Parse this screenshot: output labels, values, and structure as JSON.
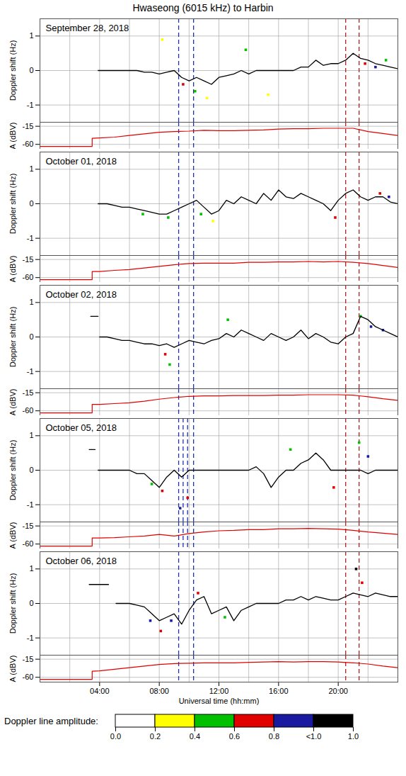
{
  "chart_data": {
    "type": "multi-panel line",
    "title": "Hwaseong (6015 kHz) to Harbin",
    "x_label": "Universal time (hh:mm)",
    "xlim": [
      0,
      24
    ],
    "xticks": [
      {
        "value": 4,
        "label": "04:00"
      },
      {
        "value": 8,
        "label": "08:00"
      },
      {
        "value": 12,
        "label": "12:00"
      },
      {
        "value": 16,
        "label": "16:00"
      },
      {
        "value": 20,
        "label": "20:00"
      }
    ],
    "grid": true,
    "doppler_label": "Doppler shift (Hz)",
    "doppler_ylim": [
      -1.5,
      1.5
    ],
    "doppler_yticks": [
      -1,
      0,
      1
    ],
    "doppler_color": "#000000",
    "amplitude_label": "A (dBV)",
    "amplitude_ylim": [
      -72,
      -5
    ],
    "amplitude_yticks": [
      -15,
      -60
    ],
    "amplitude_color": "#e00000",
    "line_style": "dashed",
    "panels": [
      {
        "date": "September 28, 2018",
        "vlines": [
          {
            "value": 9.3,
            "color": "#2233aa"
          },
          {
            "value": 10.3,
            "color": "#2233aa"
          },
          {
            "value": 20.5,
            "color": "#b22222"
          },
          {
            "value": 21.4,
            "color": "#b22222"
          }
        ],
        "doppler": {
          "x": [
            3.9,
            4.5,
            5,
            5.5,
            6,
            6.5,
            7,
            7.5,
            8,
            8.5,
            9,
            9.5,
            10,
            10.5,
            11,
            11.5,
            12,
            12.5,
            13,
            13.5,
            14,
            14.5,
            15,
            15.5,
            16,
            16.5,
            17,
            17.5,
            18,
            18.5,
            19,
            19.5,
            20,
            20.5,
            21,
            21.5,
            22,
            22.5,
            23,
            23.5,
            24
          ],
          "values": [
            0,
            0,
            0,
            0,
            0,
            0,
            -0.05,
            -0.05,
            -0.1,
            -0.05,
            0,
            -0.2,
            -0.3,
            -0.2,
            -0.3,
            -0.4,
            -0.2,
            -0.15,
            -0.1,
            0,
            -0.1,
            0,
            0,
            0,
            0,
            0,
            0,
            0.1,
            0.1,
            0.3,
            0.15,
            0.2,
            0.2,
            0.3,
            0.5,
            0.35,
            0.3,
            0.2,
            0.15,
            0.1,
            0.05
          ]
        },
        "amplitude": {
          "x": [
            0,
            1,
            2,
            3,
            3.5,
            3.5,
            4,
            5,
            6,
            7,
            8,
            9,
            10,
            11,
            12,
            13,
            14,
            15,
            16,
            17,
            18,
            19,
            20,
            21,
            22,
            23,
            24
          ],
          "values": [
            -65,
            -65,
            -65,
            -65,
            -65,
            -45,
            -44,
            -42,
            -38,
            -34,
            -30,
            -28,
            -27,
            -25,
            -26,
            -26,
            -25,
            -24,
            -22,
            -21,
            -21,
            -20,
            -20,
            -20,
            -28,
            -33,
            -38
          ]
        },
        "dots": {
          "x": [
            8.2,
            9.6,
            10.4,
            11.2,
            13.8,
            15.3,
            21.8,
            22.5,
            23.2
          ],
          "y": [
            0.9,
            -0.4,
            -0.6,
            -0.8,
            0.6,
            -0.7,
            0.2,
            0.1,
            0.3
          ],
          "values": [
            0.3,
            0.7,
            0.5,
            0.3,
            0.5,
            0.3,
            0.7,
            0.9,
            0.5
          ]
        }
      },
      {
        "date": "October 01, 2018",
        "vlines": [
          {
            "value": 9.3,
            "color": "#2233aa"
          },
          {
            "value": 10.3,
            "color": "#2233aa"
          },
          {
            "value": 20.5,
            "color": "#b22222"
          },
          {
            "value": 21.4,
            "color": "#b22222"
          }
        ],
        "doppler": {
          "x": [
            3.9,
            4.5,
            5,
            5.5,
            6,
            6.5,
            7,
            7.5,
            8,
            8.5,
            9,
            9.5,
            10,
            10.5,
            11,
            11.5,
            12,
            12.5,
            13,
            13.5,
            14,
            14.5,
            15,
            15.5,
            16,
            16.5,
            17,
            17.5,
            18,
            18.5,
            19,
            19.5,
            20,
            20.5,
            21,
            21.5,
            22,
            22.5,
            23,
            23.5,
            24
          ],
          "values": [
            0,
            0,
            -0.05,
            -0.1,
            -0.1,
            -0.15,
            -0.2,
            -0.25,
            -0.3,
            -0.3,
            -0.2,
            -0.1,
            0,
            0.1,
            -0.1,
            -0.3,
            -0.2,
            0.1,
            0,
            0.2,
            0.1,
            0,
            0.3,
            0.1,
            0.4,
            0.2,
            0.15,
            0.3,
            0.2,
            0.1,
            0,
            -0.2,
            0.1,
            0.3,
            0.4,
            0.2,
            0.1,
            0.2,
            0.2,
            0.05,
            0
          ]
        },
        "amplitude": {
          "x": [
            0,
            1,
            2,
            3,
            3.5,
            3.5,
            4,
            5,
            6,
            7,
            8,
            9,
            10,
            11,
            12,
            13,
            14,
            15,
            16,
            17,
            18,
            19,
            20,
            21,
            22,
            23,
            24
          ],
          "values": [
            -65,
            -65,
            -65,
            -65,
            -65,
            -45,
            -45,
            -42,
            -40,
            -36,
            -32,
            -28,
            -25,
            -24,
            -24,
            -24,
            -22,
            -22,
            -21,
            -21,
            -20,
            -21,
            -20,
            -22,
            -25,
            -30,
            -35
          ]
        },
        "dots": {
          "x": [
            6.9,
            8.6,
            10.8,
            11.6,
            19.8,
            22.8,
            23.4
          ],
          "y": [
            -0.3,
            -0.4,
            -0.3,
            -0.5,
            -0.4,
            0.3,
            0.2
          ],
          "values": [
            0.5,
            0.5,
            0.5,
            0.3,
            0.7,
            0.7,
            0.9
          ]
        }
      },
      {
        "date": "October 02, 2018",
        "vlines": [
          {
            "value": 9.3,
            "color": "#2233aa"
          },
          {
            "value": 10.3,
            "color": "#2233aa"
          },
          {
            "value": 20.5,
            "color": "#b22222"
          },
          {
            "value": 21.4,
            "color": "#b22222"
          }
        ],
        "doppler": {
          "x": [
            3.4,
            3.9,
            3.95,
            4.0,
            4.5,
            5,
            5.5,
            6,
            6.5,
            7,
            7.5,
            8,
            8.5,
            9,
            9.5,
            10,
            10.5,
            11,
            11.5,
            12,
            12.5,
            13,
            13.5,
            14,
            14.5,
            15,
            15.5,
            16,
            16.5,
            17,
            17.5,
            18,
            18.5,
            19,
            19.5,
            20,
            20.5,
            21,
            21.5,
            22,
            22.5,
            23,
            23.5,
            24
          ],
          "values": [
            0.6,
            0.6,
            null,
            0,
            0,
            -0.05,
            -0.1,
            -0.1,
            -0.15,
            -0.2,
            -0.2,
            -0.25,
            -0.2,
            -0.3,
            -0.2,
            -0.1,
            -0.15,
            -0.2,
            -0.1,
            -0.05,
            0.1,
            0,
            0.2,
            0.1,
            0,
            -0.1,
            0.1,
            0,
            -0.1,
            0,
            0.2,
            -0.05,
            0.1,
            0,
            -0.15,
            -0.2,
            0,
            0.1,
            0.6,
            0.5,
            0.3,
            0.2,
            0.1,
            0
          ]
        },
        "amplitude": {
          "x": [
            0,
            1,
            2,
            3,
            3.5,
            3.5,
            4,
            5,
            6,
            7,
            8,
            9,
            10,
            11,
            12,
            13,
            14,
            15,
            16,
            17,
            18,
            19,
            20,
            21,
            22,
            23,
            24
          ],
          "values": [
            -65,
            -65,
            -65,
            -65,
            -65,
            -44,
            -44,
            -42,
            -40,
            -36,
            -31,
            -27,
            -24,
            -23,
            -23,
            -22,
            -22,
            -22,
            -21,
            -21,
            -20,
            -20,
            -20,
            -21,
            -25,
            -30,
            -34
          ]
        },
        "dots": {
          "x": [
            8.4,
            8.7,
            12.6,
            21.5,
            22.2,
            23.0
          ],
          "y": [
            -0.5,
            -0.8,
            0.5,
            0.6,
            0.3,
            0.2
          ],
          "values": [
            0.7,
            0.5,
            0.5,
            0.5,
            0.9,
            0.9
          ]
        }
      },
      {
        "date": "October 05, 2018",
        "vlines": [
          {
            "value": 9.3,
            "color": "#2233aa"
          },
          {
            "value": 9.6,
            "color": "#2233aa"
          },
          {
            "value": 9.9,
            "color": "#2233aa"
          },
          {
            "value": 10.3,
            "color": "#2233aa"
          },
          {
            "value": 20.5,
            "color": "#b22222"
          },
          {
            "value": 21.4,
            "color": "#b22222"
          }
        ],
        "doppler": {
          "x": [
            3.3,
            3.7,
            3.75,
            3.9,
            4.5,
            5,
            5.5,
            6,
            6.5,
            7,
            7.5,
            8,
            8.5,
            9,
            9.5,
            10,
            10.5,
            11,
            11.5,
            12,
            12.5,
            13,
            13.5,
            14,
            14.5,
            15,
            15.5,
            16,
            16.5,
            17,
            17.5,
            18,
            18.5,
            19,
            19.5,
            20,
            20.5,
            21,
            21.5,
            22,
            22.5,
            23,
            23.5,
            24
          ],
          "values": [
            0.6,
            0.6,
            null,
            0,
            0,
            0,
            0,
            0,
            -0.1,
            -0.1,
            -0.3,
            -0.5,
            -0.2,
            0,
            -0.2,
            0,
            0,
            0,
            0,
            0,
            0,
            0,
            0,
            0,
            0.1,
            -0.1,
            -0.5,
            -0.2,
            0,
            0,
            0.2,
            0.3,
            0.5,
            0.3,
            0,
            0,
            0,
            0,
            0,
            -0.1,
            0,
            0,
            0,
            0
          ]
        },
        "amplitude": {
          "x": [
            0,
            1,
            2,
            3,
            3.5,
            3.5,
            4,
            5,
            6,
            7,
            8,
            9,
            10,
            11,
            12,
            13,
            14,
            15,
            16,
            17,
            18,
            19,
            20,
            21,
            22,
            23,
            24
          ],
          "values": [
            -65,
            -65,
            -65,
            -65,
            -65,
            -45,
            -45,
            -44,
            -42,
            -40,
            -36,
            -40,
            -34,
            -30,
            -27,
            -26,
            -24,
            -24,
            -22,
            -22,
            -21,
            -22,
            -23,
            -26,
            -30,
            -33,
            -36
          ]
        },
        "dots": {
          "x": [
            7.5,
            8.2,
            9.4,
            9.9,
            16.8,
            19.7,
            21.4,
            22.0
          ],
          "y": [
            -0.4,
            -0.6,
            -1.1,
            -0.8,
            0.6,
            -0.5,
            0.8,
            0.4
          ],
          "values": [
            0.5,
            0.7,
            0.9,
            0.7,
            0.5,
            0.7,
            0.5,
            0.9
          ]
        }
      },
      {
        "date": "October 06, 2018",
        "vlines": [
          {
            "value": 9.3,
            "color": "#2233aa"
          },
          {
            "value": 10.3,
            "color": "#2233aa"
          },
          {
            "value": 20.5,
            "color": "#b22222"
          },
          {
            "value": 21.4,
            "color": "#b22222"
          }
        ],
        "doppler": {
          "x": [
            3.3,
            4.6,
            4.65,
            5.1,
            5.5,
            6,
            6.5,
            7,
            7.5,
            8,
            8.5,
            9,
            9.5,
            10,
            10.5,
            11,
            11.5,
            12,
            12.5,
            13,
            13.5,
            14,
            14.5,
            15,
            15.5,
            16,
            16.5,
            17,
            17.5,
            18,
            18.5,
            19,
            19.5,
            20,
            20.5,
            21,
            21.5,
            22,
            22.5,
            23,
            23.5,
            24
          ],
          "values": [
            0.55,
            0.55,
            null,
            0,
            0,
            0,
            -0.05,
            -0.1,
            -0.3,
            -0.5,
            -0.4,
            -0.3,
            -0.6,
            -0.2,
            0.1,
            0.2,
            -0.3,
            -0.2,
            -0.1,
            -0.5,
            -0.2,
            -0.1,
            0,
            0,
            0,
            0,
            0.1,
            0.1,
            0.2,
            0.1,
            0.2,
            0.15,
            0.1,
            0.1,
            0.2,
            0.3,
            0.25,
            0.2,
            0.3,
            0.25,
            0.2,
            0.2
          ]
        },
        "amplitude": {
          "x": [
            0,
            1,
            2,
            3,
            3.5,
            3.5,
            4,
            5,
            6,
            7,
            8,
            9,
            10,
            11,
            12,
            13,
            14,
            15,
            16,
            17,
            18,
            19,
            20,
            21,
            22,
            23,
            24
          ],
          "values": [
            -65,
            -65,
            -65,
            -65,
            -65,
            -45,
            -44,
            -40,
            -36,
            -32,
            -28,
            -26,
            -25,
            -24,
            -24,
            -24,
            -23,
            -22,
            -21,
            -22,
            -21,
            -21,
            -22,
            -24,
            -27,
            -32,
            -36
          ]
        },
        "dots": {
          "x": [
            7.4,
            8.1,
            8.8,
            10.6,
            12.4,
            21.2,
            21.6
          ],
          "y": [
            -0.5,
            -0.8,
            -0.5,
            0.3,
            -0.4,
            1.0,
            0.6
          ],
          "values": [
            0.9,
            0.7,
            0.9,
            0.7,
            0.5,
            1.0,
            0.7
          ]
        }
      }
    ],
    "colorbar": {
      "title": "Doppler line amplitude:",
      "colors": [
        "#ffffff",
        "#ffff00",
        "#00c000",
        "#e00000",
        "#1a1aa0",
        "#000000"
      ],
      "ticks": [
        {
          "value": 0,
          "label": "0.0"
        },
        {
          "value": 0.2,
          "label": "0.2"
        },
        {
          "value": 0.4,
          "label": "0.4"
        },
        {
          "value": 0.6,
          "label": "0.6"
        },
        {
          "value": 0.8,
          "label": "0.8"
        },
        {
          "value": 1.0,
          "label": "<1.0"
        },
        {
          "value": 1.0,
          "label": "1.0"
        }
      ]
    }
  }
}
